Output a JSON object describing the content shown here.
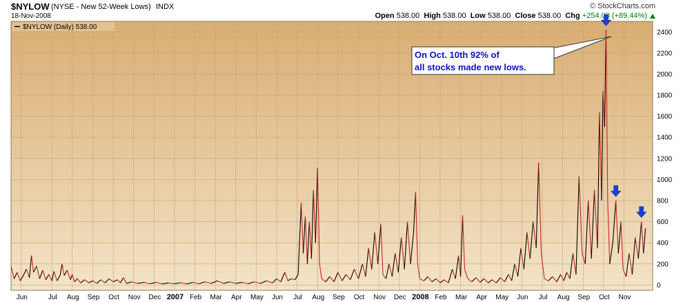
{
  "header": {
    "symbol": "$NYLOW",
    "name": "(NYSE - New 52-Week Lows)",
    "exchange": "INDX",
    "date": "18-Nov-2008",
    "brand": "© StockCharts.com",
    "open_label": "Open",
    "open": "538.00",
    "high_label": "High",
    "high": "538.00",
    "low_label": "Low",
    "low": "538.00",
    "close_label": "Close",
    "close": "538.00",
    "chg_label": "Chg",
    "chg": "+254.00 (+89.44%)"
  },
  "colors": {
    "bg_top": "#d9ad72",
    "bg_bottom": "#f4e4c8",
    "grid": "#c9a878",
    "line_up": "#000000",
    "line_down": "#cc2222",
    "arrow": "#1a3fd8",
    "callout_text": "#1010c8"
  },
  "chart_data": {
    "type": "line",
    "legend": "$NYLOW (Daily) 538.00",
    "legend_position": "top-left",
    "annotation": "On Oct. 10th 92% of all stocks made new lows.",
    "grid": true,
    "ylim": [
      -50,
      2500
    ],
    "y_ticks": [
      0,
      200,
      400,
      600,
      800,
      1000,
      1200,
      1400,
      1600,
      1800,
      2000,
      2200,
      2400
    ],
    "x_ticks": [
      {
        "label": "Jun",
        "t": 0.5
      },
      {
        "label": "Jul",
        "t": 2
      },
      {
        "label": "Aug",
        "t": 3
      },
      {
        "label": "Sep",
        "t": 4
      },
      {
        "label": "Oct",
        "t": 5
      },
      {
        "label": "Nov",
        "t": 6
      },
      {
        "label": "Dec",
        "t": 7
      },
      {
        "label": "2007",
        "t": 8,
        "bold": true
      },
      {
        "label": "Feb",
        "t": 9
      },
      {
        "label": "Mar",
        "t": 10
      },
      {
        "label": "Apr",
        "t": 11
      },
      {
        "label": "May",
        "t": 12
      },
      {
        "label": "Jun",
        "t": 13
      },
      {
        "label": "Jul",
        "t": 14
      },
      {
        "label": "Aug",
        "t": 15
      },
      {
        "label": "Sep",
        "t": 16
      },
      {
        "label": "Oct",
        "t": 17
      },
      {
        "label": "Nov",
        "t": 18
      },
      {
        "label": "Dec",
        "t": 19
      },
      {
        "label": "2008",
        "t": 20,
        "bold": true
      },
      {
        "label": "Feb",
        "t": 21
      },
      {
        "label": "Mar",
        "t": 22
      },
      {
        "label": "Apr",
        "t": 23
      },
      {
        "label": "May",
        "t": 24
      },
      {
        "label": "Jun",
        "t": 25
      },
      {
        "label": "Jul",
        "t": 26
      },
      {
        "label": "Aug",
        "t": 27
      },
      {
        "label": "Sep",
        "t": 28
      },
      {
        "label": "Oct",
        "t": 29
      },
      {
        "label": "Nov",
        "t": 30
      }
    ],
    "x_range": [
      0,
      31.4
    ],
    "series": [
      {
        "values": [
          [
            0.0,
            180
          ],
          [
            0.15,
            60
          ],
          [
            0.3,
            120
          ],
          [
            0.45,
            40
          ],
          [
            0.6,
            90
          ],
          [
            0.75,
            150
          ],
          [
            0.9,
            70
          ],
          [
            1.0,
            280
          ],
          [
            1.1,
            120
          ],
          [
            1.25,
            180
          ],
          [
            1.4,
            60
          ],
          [
            1.55,
            140
          ],
          [
            1.7,
            50
          ],
          [
            1.85,
            100
          ],
          [
            2.0,
            40
          ],
          [
            2.1,
            130
          ],
          [
            2.25,
            40
          ],
          [
            2.4,
            90
          ],
          [
            2.5,
            200
          ],
          [
            2.6,
            90
          ],
          [
            2.75,
            140
          ],
          [
            2.9,
            50
          ],
          [
            3.0,
            100
          ],
          [
            3.1,
            30
          ],
          [
            3.25,
            60
          ],
          [
            3.4,
            20
          ],
          [
            3.6,
            50
          ],
          [
            3.8,
            20
          ],
          [
            4.0,
            40
          ],
          [
            4.2,
            15
          ],
          [
            4.4,
            50
          ],
          [
            4.6,
            20
          ],
          [
            4.8,
            60
          ],
          [
            5.0,
            30
          ],
          [
            5.2,
            50
          ],
          [
            5.35,
            20
          ],
          [
            5.5,
            70
          ],
          [
            5.65,
            15
          ],
          [
            5.9,
            30
          ],
          [
            6.2,
            15
          ],
          [
            6.5,
            25
          ],
          [
            6.8,
            12
          ],
          [
            7.1,
            25
          ],
          [
            7.4,
            10
          ],
          [
            7.7,
            20
          ],
          [
            8.0,
            12
          ],
          [
            8.3,
            22
          ],
          [
            8.6,
            10
          ],
          [
            8.9,
            25
          ],
          [
            9.2,
            12
          ],
          [
            9.5,
            30
          ],
          [
            9.8,
            15
          ],
          [
            10.1,
            40
          ],
          [
            10.4,
            15
          ],
          [
            10.7,
            30
          ],
          [
            11.0,
            15
          ],
          [
            11.3,
            25
          ],
          [
            11.6,
            12
          ],
          [
            11.9,
            30
          ],
          [
            12.2,
            15
          ],
          [
            12.5,
            40
          ],
          [
            12.8,
            20
          ],
          [
            13.0,
            60
          ],
          [
            13.2,
            30
          ],
          [
            13.4,
            120
          ],
          [
            13.55,
            40
          ],
          [
            13.7,
            60
          ],
          [
            13.9,
            50
          ],
          [
            14.05,
            100
          ],
          [
            14.2,
            780
          ],
          [
            14.3,
            300
          ],
          [
            14.4,
            650
          ],
          [
            14.5,
            200
          ],
          [
            14.6,
            600
          ],
          [
            14.7,
            250
          ],
          [
            14.8,
            900
          ],
          [
            14.9,
            400
          ],
          [
            15.0,
            1110
          ],
          [
            15.1,
            200
          ],
          [
            15.2,
            60
          ],
          [
            15.4,
            30
          ],
          [
            15.6,
            80
          ],
          [
            15.8,
            30
          ],
          [
            16.0,
            120
          ],
          [
            16.2,
            40
          ],
          [
            16.4,
            100
          ],
          [
            16.6,
            50
          ],
          [
            16.8,
            150
          ],
          [
            17.0,
            60
          ],
          [
            17.2,
            200
          ],
          [
            17.35,
            80
          ],
          [
            17.5,
            350
          ],
          [
            17.65,
            150
          ],
          [
            17.8,
            500
          ],
          [
            17.95,
            200
          ],
          [
            18.1,
            580
          ],
          [
            18.2,
            100
          ],
          [
            18.35,
            60
          ],
          [
            18.5,
            200
          ],
          [
            18.65,
            80
          ],
          [
            18.8,
            300
          ],
          [
            18.95,
            120
          ],
          [
            19.1,
            450
          ],
          [
            19.25,
            150
          ],
          [
            19.4,
            600
          ],
          [
            19.55,
            200
          ],
          [
            19.7,
            500
          ],
          [
            19.8,
            880
          ],
          [
            19.9,
            200
          ],
          [
            20.0,
            60
          ],
          [
            20.2,
            40
          ],
          [
            20.4,
            80
          ],
          [
            20.6,
            30
          ],
          [
            20.8,
            60
          ],
          [
            21.0,
            20
          ],
          [
            21.2,
            50
          ],
          [
            21.4,
            20
          ],
          [
            21.6,
            150
          ],
          [
            21.75,
            60
          ],
          [
            21.9,
            280
          ],
          [
            22.0,
            80
          ],
          [
            22.1,
            660
          ],
          [
            22.2,
            150
          ],
          [
            22.35,
            60
          ],
          [
            22.55,
            30
          ],
          [
            22.75,
            70
          ],
          [
            22.95,
            25
          ],
          [
            23.15,
            60
          ],
          [
            23.35,
            20
          ],
          [
            23.55,
            50
          ],
          [
            23.75,
            20
          ],
          [
            23.95,
            70
          ],
          [
            24.15,
            30
          ],
          [
            24.35,
            100
          ],
          [
            24.5,
            40
          ],
          [
            24.65,
            200
          ],
          [
            24.8,
            80
          ],
          [
            24.95,
            350
          ],
          [
            25.1,
            150
          ],
          [
            25.25,
            500
          ],
          [
            25.4,
            250
          ],
          [
            25.55,
            600
          ],
          [
            25.7,
            350
          ],
          [
            25.82,
            1160
          ],
          [
            25.95,
            300
          ],
          [
            26.1,
            60
          ],
          [
            26.3,
            40
          ],
          [
            26.5,
            80
          ],
          [
            26.7,
            30
          ],
          [
            26.9,
            100
          ],
          [
            27.05,
            40
          ],
          [
            27.2,
            120
          ],
          [
            27.35,
            60
          ],
          [
            27.5,
            300
          ],
          [
            27.65,
            100
          ],
          [
            27.8,
            1030
          ],
          [
            27.95,
            300
          ],
          [
            28.1,
            200
          ],
          [
            28.25,
            800
          ],
          [
            28.4,
            250
          ],
          [
            28.55,
            900
          ],
          [
            28.7,
            350
          ],
          [
            28.8,
            1640
          ],
          [
            28.9,
            800
          ],
          [
            28.97,
            1840
          ],
          [
            29.05,
            1500
          ],
          [
            29.12,
            2420
          ],
          [
            29.2,
            800
          ],
          [
            29.3,
            200
          ],
          [
            29.45,
            400
          ],
          [
            29.6,
            800
          ],
          [
            29.72,
            300
          ],
          [
            29.85,
            600
          ],
          [
            29.95,
            150
          ],
          [
            30.1,
            80
          ],
          [
            30.25,
            300
          ],
          [
            30.4,
            100
          ],
          [
            30.55,
            450
          ],
          [
            30.7,
            250
          ],
          [
            30.85,
            600
          ],
          [
            30.95,
            300
          ],
          [
            31.05,
            538
          ]
        ]
      }
    ],
    "markers": [
      {
        "type": "down-arrow",
        "x": 29.12,
        "y": 2420
      },
      {
        "type": "down-arrow",
        "x": 29.6,
        "y": 800
      },
      {
        "type": "down-arrow",
        "x": 30.85,
        "y": 600
      }
    ]
  }
}
